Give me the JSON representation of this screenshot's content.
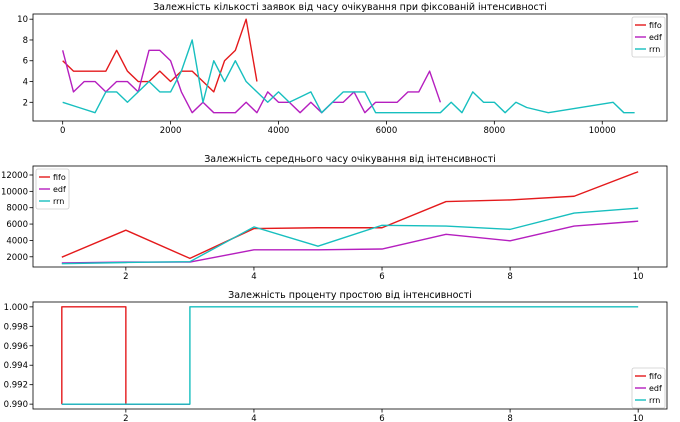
{
  "colors": {
    "fifo": "#e41a1c",
    "edf": "#b51fbf",
    "rrn": "#17bfbf"
  },
  "chart_data": [
    {
      "type": "line",
      "title": "Залежність кількості заявок від часу очікування при фіксованій інтенсивності",
      "xlabel": "",
      "ylabel": "",
      "xlim": [
        -550,
        11200
      ],
      "ylim": [
        0.2,
        10.5
      ],
      "xticks": [
        0,
        2000,
        4000,
        6000,
        8000,
        10000
      ],
      "yticks": [
        2,
        4,
        6,
        8,
        10
      ],
      "legend_position": "top-right",
      "series": [
        {
          "name": "fifo",
          "color_key": "fifo",
          "x": [
            0,
            200,
            400,
            600,
            800,
            1000,
            1200,
            1400,
            1600,
            1800,
            2000,
            2200,
            2400,
            2600,
            2800,
            3000,
            3200,
            3400,
            3600
          ],
          "y": [
            6,
            5,
            5,
            5,
            5,
            7,
            5,
            4,
            4,
            5,
            4,
            5,
            5,
            4,
            3,
            6,
            7,
            10,
            4
          ]
        },
        {
          "name": "edf",
          "color_key": "edf",
          "x": [
            0,
            200,
            400,
            600,
            800,
            1000,
            1200,
            1400,
            1600,
            1800,
            2000,
            2200,
            2400,
            2600,
            2800,
            3000,
            3200,
            3400,
            3600,
            3800,
            4000,
            4200,
            4400,
            4600,
            4800,
            5000,
            5200,
            5400,
            5600,
            5800,
            6000,
            6200,
            6400,
            6600,
            6800,
            7000
          ],
          "y": [
            7,
            3,
            4,
            4,
            3,
            4,
            4,
            3,
            7,
            7,
            6,
            3,
            1,
            2,
            1,
            1,
            1,
            2,
            1,
            3,
            2,
            2,
            1,
            2,
            1,
            2,
            2,
            3,
            1,
            2,
            2,
            2,
            3,
            3,
            5,
            2
          ]
        },
        {
          "name": "rrn",
          "color_key": "rrn",
          "x": [
            0,
            300,
            600,
            800,
            1000,
            1200,
            1400,
            1600,
            1800,
            2000,
            2200,
            2400,
            2600,
            2800,
            3000,
            3200,
            3400,
            3600,
            3800,
            4000,
            4200,
            4400,
            4600,
            4800,
            5000,
            5200,
            5400,
            5600,
            5800,
            6000,
            6500,
            7000,
            7200,
            7400,
            7600,
            7800,
            8000,
            8200,
            8400,
            8600,
            9000,
            10200,
            10400,
            10600
          ],
          "y": [
            2,
            1.5,
            1,
            3,
            3,
            2,
            3,
            4,
            3,
            3,
            5,
            8,
            2,
            6,
            4,
            6,
            4,
            3,
            2,
            3,
            2,
            2.5,
            3,
            1,
            2,
            3,
            3,
            3,
            1,
            1,
            1,
            1,
            2,
            1,
            3,
            2,
            2,
            1,
            2,
            1.5,
            1,
            2,
            1,
            1
          ]
        }
      ]
    },
    {
      "type": "line",
      "title": "Залежність середнього часу очікування від інтенсивності",
      "xlabel": "",
      "ylabel": "",
      "xlim": [
        0.55,
        10.45
      ],
      "ylim": [
        750,
        13100
      ],
      "xticks": [
        2,
        4,
        6,
        8,
        10
      ],
      "yticks": [
        2000,
        4000,
        6000,
        8000,
        10000,
        12000
      ],
      "legend_position": "top-left",
      "series": [
        {
          "name": "fifo",
          "color_key": "fifo",
          "x": [
            1,
            2,
            3,
            4,
            5,
            6,
            7,
            8,
            9,
            10
          ],
          "y": [
            1950,
            5250,
            1800,
            5450,
            5550,
            5550,
            8750,
            8950,
            9400,
            12400
          ]
        },
        {
          "name": "edf",
          "color_key": "edf",
          "x": [
            1,
            2,
            3,
            4,
            5,
            6,
            7,
            8,
            9,
            10
          ],
          "y": [
            1250,
            1350,
            1350,
            2850,
            2850,
            2950,
            4750,
            3950,
            5750,
            6350
          ]
        },
        {
          "name": "rrn",
          "color_key": "rrn",
          "x": [
            1,
            2,
            3,
            4,
            5,
            6,
            7,
            8,
            9,
            10
          ],
          "y": [
            1150,
            1300,
            1400,
            5650,
            3300,
            5850,
            5750,
            5350,
            7350,
            7950
          ]
        }
      ]
    },
    {
      "type": "line",
      "title": "Залежність проценту простою від інтенсивності",
      "xlabel": "",
      "ylabel": "",
      "xlim": [
        0.55,
        10.45
      ],
      "ylim": [
        0.9895,
        1.0005
      ],
      "xticks": [
        2,
        4,
        6,
        8,
        10
      ],
      "yticks": [
        0.99,
        0.992,
        0.994,
        0.996,
        0.998,
        1.0
      ],
      "ytick_labels": [
        "0.990",
        "0.992",
        "0.994",
        "0.996",
        "0.998",
        "1.000"
      ],
      "legend_position": "bottom-right",
      "series": [
        {
          "name": "fifo",
          "color_key": "fifo",
          "step": true,
          "x": [
            1,
            1,
            2,
            2,
            3
          ],
          "y": [
            0.99,
            1.0,
            1.0,
            0.99,
            0.99
          ]
        },
        {
          "name": "edf",
          "color_key": "edf",
          "step": true,
          "x": [
            1,
            2,
            3
          ],
          "y": [
            0.99,
            0.99,
            0.99
          ]
        },
        {
          "name": "rrn",
          "color_key": "rrn",
          "step": true,
          "x": [
            1,
            3,
            3,
            10
          ],
          "y": [
            0.99,
            0.99,
            1.0,
            1.0
          ]
        }
      ]
    }
  ]
}
